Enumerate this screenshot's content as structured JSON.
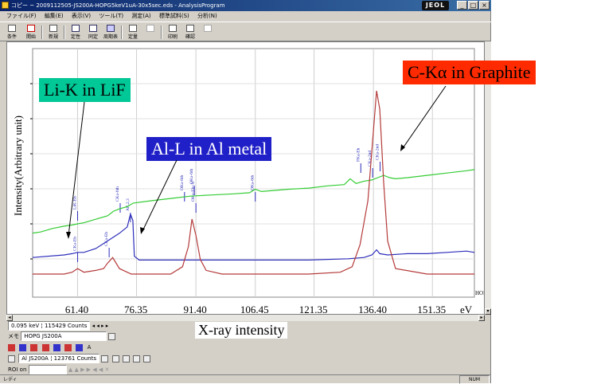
{
  "window": {
    "title": "コピー ~ 2009112505-JS200A-HOPG5keV1uA-30x5sec.eds - AnalysisProgram",
    "logo": "JEOL",
    "controls": [
      "_",
      "□",
      "×"
    ]
  },
  "menu": [
    "ファイル(F)",
    "編集(E)",
    "表示(V)",
    "ツール(T)",
    "測定(A)",
    "標準試料(S)",
    "分析(N)"
  ],
  "toolbar": [
    {
      "label": "条件",
      "icon": "conditions-icon",
      "disabled": false
    },
    {
      "label": "開始",
      "icon": "start-icon",
      "disabled": false
    },
    {
      "label": "新規",
      "icon": "new-icon",
      "disabled": false
    },
    {
      "label": "定性",
      "icon": "qualitative-icon",
      "disabled": false
    },
    {
      "label": "同定",
      "icon": "identify-icon",
      "disabled": false
    },
    {
      "label": "周期表",
      "icon": "periodic-table-icon",
      "disabled": false
    },
    {
      "label": "定量",
      "icon": "quantitative-icon",
      "disabled": false
    },
    {
      "label": "",
      "icon": "graph-icon",
      "disabled": true
    },
    {
      "label": "印刷",
      "icon": "print-icon",
      "disabled": false
    },
    {
      "label": "確認",
      "icon": "preview-icon",
      "disabled": false
    },
    {
      "label": "",
      "icon": "export-icon",
      "disabled": true
    }
  ],
  "callouts": {
    "li": "Li-K in LiF",
    "al": "Al-L in Al metal",
    "c": "C-Kα in Graphite"
  },
  "axis": {
    "ylabel": "Intensity(Arbitrary unit)",
    "xlabel": "X-ray intensity",
    "unit": "eV"
  },
  "peak_labels": [
    "LiK-Eh",
    "CKa-Eh",
    "AlL2,3",
    "CKa-Eh",
    "CKa-6th",
    "OKa-6th",
    "OKa-Eh+N",
    "OKa-6th",
    "OKa-6th",
    "FKa-Eh",
    "CKa-2nd",
    "CKa-2nd"
  ],
  "sample_tag": "HOPG",
  "chart_data": {
    "type": "line",
    "x_ticks": [
      61.4,
      76.35,
      91.4,
      106.45,
      121.35,
      136.4,
      151.35
    ],
    "x_tick_labels": [
      "61.40",
      "76.35",
      "91.40",
      "106.45",
      "121.35",
      "136.40",
      "151.35"
    ],
    "xlim": [
      50,
      162
    ],
    "xlabel": "X-ray intensity",
    "ylabel": "Intensity(Arbitrary unit)",
    "series": [
      {
        "color": "#33cc33",
        "x": [
          50,
          52,
          55,
          58,
          60,
          61.4,
          63,
          66,
          69,
          70.5,
          72,
          74,
          75.5,
          80,
          85,
          90,
          95,
          101,
          105,
          106.45,
          108,
          115,
          120,
          125,
          129,
          130.5,
          132,
          134,
          136,
          137.5,
          139,
          140.5,
          142,
          145,
          150,
          155,
          160,
          162
        ],
        "y": [
          12,
          13,
          16,
          18,
          19,
          20,
          21,
          24,
          27,
          31,
          33,
          35,
          38,
          40,
          42,
          44,
          45,
          46,
          47,
          50,
          48,
          50,
          51,
          53,
          54,
          59,
          55,
          57,
          58,
          60,
          62,
          60,
          59,
          60,
          62,
          64,
          66,
          67
        ]
      },
      {
        "color": "#2d2dbb",
        "x": [
          50,
          58,
          60,
          61.4,
          63,
          66,
          69,
          72,
          74,
          74.8,
          75.4,
          75.8,
          77,
          80,
          90,
          100,
          110,
          120,
          130,
          134,
          136,
          137.2,
          138,
          140,
          145,
          150,
          155,
          160,
          162
        ],
        "y": [
          3,
          5,
          6,
          7,
          7,
          10,
          16,
          22,
          27,
          37,
          32,
          4,
          1,
          1,
          1,
          1,
          1,
          1,
          2,
          3,
          5,
          9,
          6,
          5,
          6,
          6,
          7,
          8,
          7
        ]
      },
      {
        "color": "#b53a3a",
        "x": [
          50,
          58,
          60,
          61.4,
          63,
          66,
          68,
          69,
          70.3,
          72,
          75,
          80,
          85,
          88,
          89.5,
          90.4,
          91.4,
          92.5,
          94,
          98,
          110,
          120,
          128,
          131,
          133,
          135,
          136.4,
          137.2,
          138,
          139,
          140,
          142,
          150,
          162
        ],
        "y": [
          0,
          0,
          1,
          3,
          1,
          2,
          3,
          6,
          9,
          3,
          0,
          0,
          0,
          4,
          15,
          30,
          21,
          8,
          2,
          0,
          0,
          0,
          1,
          4,
          16,
          40,
          78,
          100,
          90,
          50,
          18,
          3,
          0,
          0
        ]
      }
    ],
    "grid": true
  }
}
